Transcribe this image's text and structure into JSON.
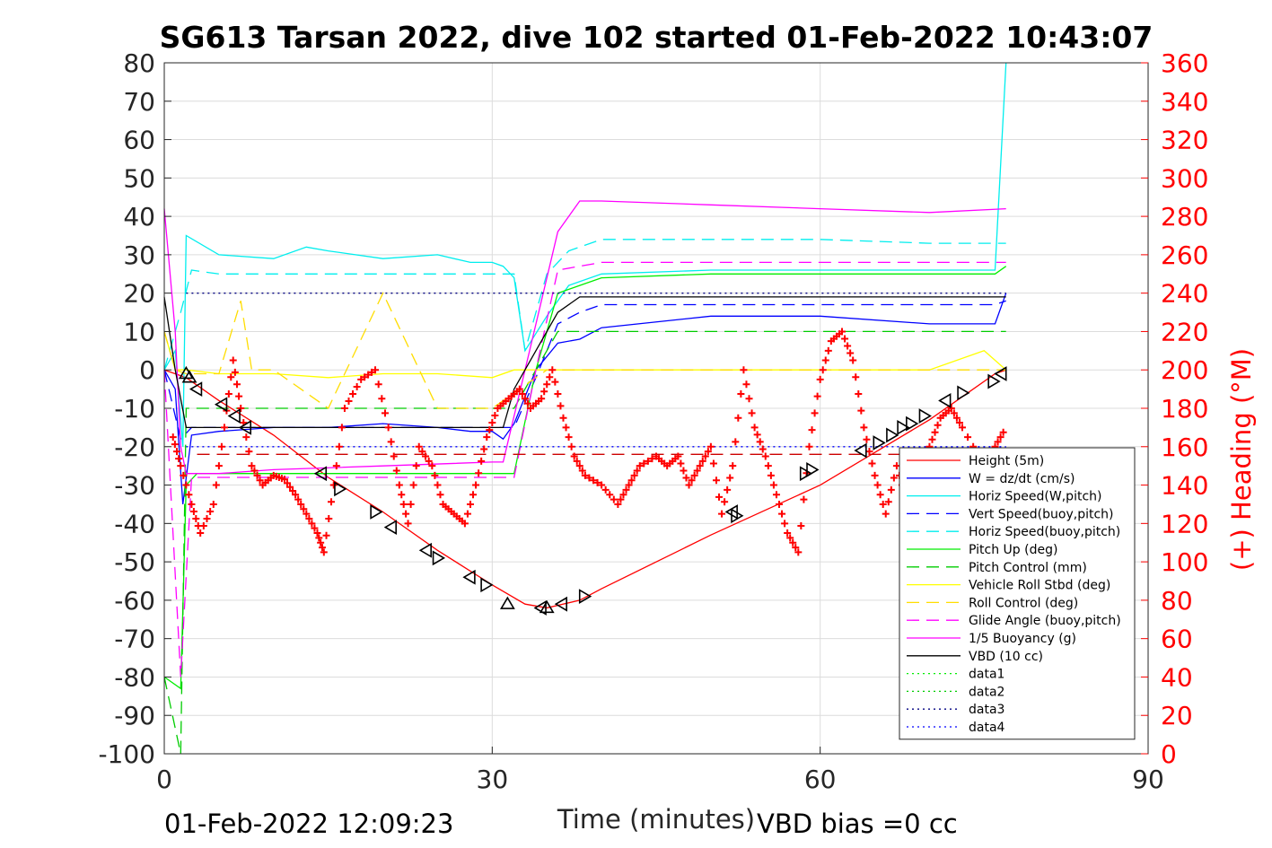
{
  "chart_data": {
    "type": "line",
    "title": "SG613 Tarsan 2022, dive 102 started 01-Feb-2022 10:43:07",
    "xlabel": "Time (minutes)",
    "ylabel_right": "(+) Heading (°M)",
    "footer_left": "01-Feb-2022 12:09:23",
    "footer_right": "VBD bias =0 cc",
    "xlim": [
      0,
      90
    ],
    "ylim": [
      -100,
      80
    ],
    "y2lim": [
      0,
      360
    ],
    "xticks": [
      0,
      30,
      60,
      90
    ],
    "yticks": [
      80,
      70,
      60,
      50,
      40,
      30,
      20,
      10,
      0,
      -10,
      -20,
      -30,
      -40,
      -50,
      -60,
      -70,
      -80,
      -90,
      -100
    ],
    "y2ticks": [
      360,
      340,
      320,
      300,
      280,
      260,
      240,
      220,
      200,
      180,
      160,
      140,
      120,
      100,
      80,
      60,
      40,
      20,
      0
    ],
    "grid": true,
    "legend_position": "bottom-right",
    "colors": {
      "axis": "#262626",
      "right_axis": "#ff0000",
      "grid": "#dcdcdc"
    },
    "series": [
      {
        "name": "Height (5m)",
        "color": "#ff0000",
        "style": "solid",
        "x": [
          0,
          2,
          5,
          10,
          15,
          20,
          25,
          30,
          33,
          35,
          38,
          40,
          50,
          60,
          70,
          76,
          77
        ],
        "y": [
          0,
          -2,
          -8,
          -17,
          -28,
          -37,
          -47,
          -56,
          -61,
          -62,
          -60,
          -57,
          -43,
          -30,
          -13,
          -1,
          0
        ]
      },
      {
        "name": "W = dz/dt (cm/s)",
        "color": "#0000ff",
        "style": "solid",
        "x": [
          0,
          1,
          1.7,
          2.5,
          5,
          10,
          15,
          20,
          25,
          28,
          30,
          31,
          32,
          34,
          36,
          38,
          40,
          50,
          60,
          70,
          76,
          77
        ],
        "y": [
          0,
          -5,
          -35,
          -17,
          -16,
          -15,
          -15,
          -14,
          -15,
          -16,
          -16,
          -18,
          -14,
          0,
          7,
          8,
          11,
          14,
          14,
          12,
          12,
          20
        ]
      },
      {
        "name": "Horiz Speed(W,pitch)",
        "color": "#00eeee",
        "style": "solid",
        "x": [
          0,
          1,
          1.7,
          2,
          5,
          10,
          13,
          15,
          20,
          25,
          28,
          30,
          31,
          32,
          33,
          35,
          37,
          40,
          50,
          60,
          70,
          76,
          77
        ],
        "y": [
          0,
          5,
          -20,
          35,
          30,
          29,
          32,
          31,
          29,
          30,
          28,
          28,
          27,
          24,
          5,
          14,
          22,
          25,
          26,
          26,
          26,
          26,
          80
        ]
      },
      {
        "name": "Vert Speed(buoy,pitch)",
        "color": "#0000ff",
        "style": "dash",
        "x": [
          0,
          1.5,
          2.5,
          5,
          10,
          20,
          30,
          32,
          34,
          36,
          38,
          40,
          50,
          60,
          70,
          76,
          77
        ],
        "y": [
          0,
          -18,
          -15,
          -15,
          -15,
          -15,
          -15,
          -15,
          -2,
          12,
          15,
          17,
          17,
          17,
          17,
          17,
          18
        ]
      },
      {
        "name": "Horiz Speed(buoy,pitch)",
        "color": "#00eeee",
        "style": "dash",
        "x": [
          0,
          1.5,
          2.5,
          5,
          10,
          20,
          30,
          32,
          33,
          35,
          37,
          40,
          50,
          60,
          70,
          76,
          77
        ],
        "y": [
          0,
          15,
          26,
          25,
          25,
          25,
          25,
          25,
          5,
          25,
          31,
          34,
          34,
          34,
          33,
          33,
          33
        ]
      },
      {
        "name": "Pitch Up (deg)",
        "color": "#00ee00",
        "style": "solid",
        "x": [
          0,
          1.5,
          2,
          3,
          5,
          10,
          20,
          30,
          32,
          34,
          36,
          38,
          40,
          50,
          60,
          70,
          76,
          77
        ],
        "y": [
          -80,
          -83,
          -30,
          -27,
          -27,
          -27,
          -27,
          -27,
          -27,
          0,
          20,
          22,
          24,
          25,
          25,
          25,
          25,
          27
        ]
      },
      {
        "name": "Pitch Control (mm)",
        "color": "#00cc00",
        "style": "dash",
        "x": [
          0,
          1.5,
          2,
          3,
          5,
          10,
          20,
          30,
          32,
          34,
          36,
          40,
          50,
          60,
          70,
          76,
          77
        ],
        "y": [
          -80,
          -100,
          -10,
          -10,
          -10,
          -10,
          -10,
          -10,
          -10,
          0,
          10,
          10,
          10,
          10,
          10,
          10,
          10
        ]
      },
      {
        "name": "Vehicle Roll Stbd (deg)",
        "color": "#ffff00",
        "style": "solid",
        "x": [
          0,
          1,
          2,
          5,
          10,
          15,
          20,
          25,
          30,
          32,
          35,
          40,
          50,
          60,
          65,
          70,
          75,
          77
        ],
        "y": [
          10,
          0,
          0,
          -1,
          -1,
          -2,
          -1,
          -1,
          -2,
          0,
          0,
          0,
          0,
          0,
          0,
          0,
          5,
          0
        ]
      },
      {
        "name": "Roll Control (deg)",
        "color": "#ffdd00",
        "style": "dash",
        "x": [
          0,
          1,
          2,
          5,
          7,
          8,
          10,
          15,
          20,
          25,
          30,
          35,
          40,
          50,
          60,
          70,
          77
        ],
        "y": [
          10,
          0,
          -1,
          -1,
          18,
          0,
          0,
          -10,
          20,
          -10,
          -10,
          0,
          0,
          0,
          0,
          0,
          0
        ]
      },
      {
        "name": "Glide Angle (buoy,pitch)",
        "color": "#ff00ff",
        "style": "dash",
        "x": [
          0,
          1.5,
          2.5,
          5,
          10,
          20,
          30,
          32,
          34,
          36,
          40,
          50,
          60,
          70,
          77
        ],
        "y": [
          0,
          -80,
          -28,
          -28,
          -28,
          -28,
          -28,
          -28,
          0,
          26,
          28,
          28,
          28,
          28,
          28
        ]
      },
      {
        "name": "1/5 Buoyancy (g)",
        "color": "#ff00ff",
        "style": "solid",
        "x": [
          0,
          1,
          1.5,
          2,
          5,
          10,
          20,
          30,
          31,
          33,
          36,
          38,
          40,
          50,
          60,
          70,
          77
        ],
        "y": [
          42,
          10,
          -20,
          -27,
          -27,
          -26,
          -25,
          -24,
          -24,
          0,
          36,
          44,
          44,
          43,
          42,
          41,
          42
        ]
      },
      {
        "name": "VBD (10 cc)",
        "color": "#000000",
        "style": "solid",
        "x": [
          0,
          1,
          2,
          5,
          10,
          20,
          30,
          31,
          32,
          34,
          36,
          38,
          39,
          45,
          60,
          77
        ],
        "y": [
          19,
          0,
          -15,
          -15,
          -15,
          -15,
          -15,
          -15,
          -5,
          5,
          15,
          19,
          19,
          19,
          19,
          19
        ]
      },
      {
        "name": "data1",
        "color": "#00ee00",
        "style": "dot",
        "x": [],
        "y": []
      },
      {
        "name": "data2",
        "color": "#00cc00",
        "style": "dot",
        "x": [],
        "y": []
      },
      {
        "name": "data3",
        "color": "#000080",
        "style": "dot",
        "x": [
          2,
          77
        ],
        "y": [
          20,
          20
        ]
      },
      {
        "name": "data4",
        "color": "#0000ff",
        "style": "dot",
        "x": [
          2,
          77
        ],
        "y": [
          -20,
          -20
        ]
      },
      {
        "name": "",
        "color": "#cc0000",
        "style": "dash",
        "x": [
          3,
          77
        ],
        "y": [
          -22,
          -22
        ]
      }
    ],
    "heading": {
      "color": "#ff0000",
      "marker": "+",
      "axis": "right",
      "x": [
        0.8,
        1.5,
        2.5,
        3.3,
        4.5,
        5.5,
        6.3,
        7,
        8,
        9,
        10,
        11,
        12,
        13,
        14,
        14.6,
        15.5,
        16.5,
        18,
        19.3,
        20.5,
        21.5,
        22.3,
        23.3,
        24.5,
        25.5,
        26.5,
        27.5,
        28.5,
        29.5,
        30.5,
        31.5,
        32.5,
        33.5,
        34.5,
        35.5,
        36.5,
        37.5,
        38.5,
        40,
        41.5,
        42.5,
        43.5,
        45,
        46,
        47,
        48,
        49,
        50,
        51,
        52,
        53,
        54,
        55,
        56,
        57,
        58,
        59,
        60,
        61,
        62,
        63,
        64,
        65,
        66,
        67,
        68,
        69,
        70,
        71,
        72,
        73,
        75,
        76,
        77
      ],
      "y": [
        165,
        150,
        130,
        115,
        130,
        170,
        205,
        180,
        150,
        140,
        145,
        143,
        135,
        125,
        115,
        105,
        140,
        180,
        195,
        200,
        170,
        140,
        120,
        160,
        150,
        130,
        125,
        120,
        140,
        165,
        180,
        185,
        190,
        180,
        185,
        200,
        175,
        155,
        145,
        140,
        130,
        140,
        150,
        155,
        150,
        155,
        140,
        150,
        160,
        125,
        150,
        200,
        170,
        155,
        135,
        115,
        105,
        160,
        195,
        215,
        220,
        205,
        170,
        145,
        125,
        150,
        130,
        140,
        160,
        175,
        180,
        170,
        150,
        160,
        170
      ]
    },
    "markers": {
      "color": "#000000",
      "marker": "triangle",
      "x": [
        2,
        2.3,
        3,
        5.3,
        6.5,
        7.5,
        14.4,
        16,
        19.3,
        20.8,
        24,
        25,
        28,
        29.4,
        31.4,
        34.5,
        35,
        36.4,
        38.4,
        52,
        52.3,
        58.6,
        59.2,
        63.8,
        65.3,
        66.5,
        67.5,
        68.3,
        69.5,
        71.5,
        73,
        75.8,
        76.6
      ],
      "y": [
        -1,
        -2,
        -5,
        -9,
        -12,
        -15,
        -27,
        -31,
        -37,
        -41,
        -47,
        -49,
        -54,
        -56,
        -61,
        -62,
        -62,
        -61,
        -59,
        -37,
        -38,
        -27,
        -26,
        -21,
        -19,
        -17,
        -15,
        -14,
        -12,
        -8,
        -6,
        -3,
        -1
      ],
      "dirs": [
        "up",
        "up",
        "left",
        "left",
        "left",
        "left",
        "left",
        "right",
        "right",
        "left",
        "left",
        "right",
        "left",
        "right",
        "up",
        "left",
        "up",
        "left",
        "right",
        "left",
        "right",
        "right",
        "right",
        "left",
        "right",
        "right",
        "right",
        "right",
        "right",
        "left",
        "right",
        "right",
        "left"
      ]
    }
  }
}
